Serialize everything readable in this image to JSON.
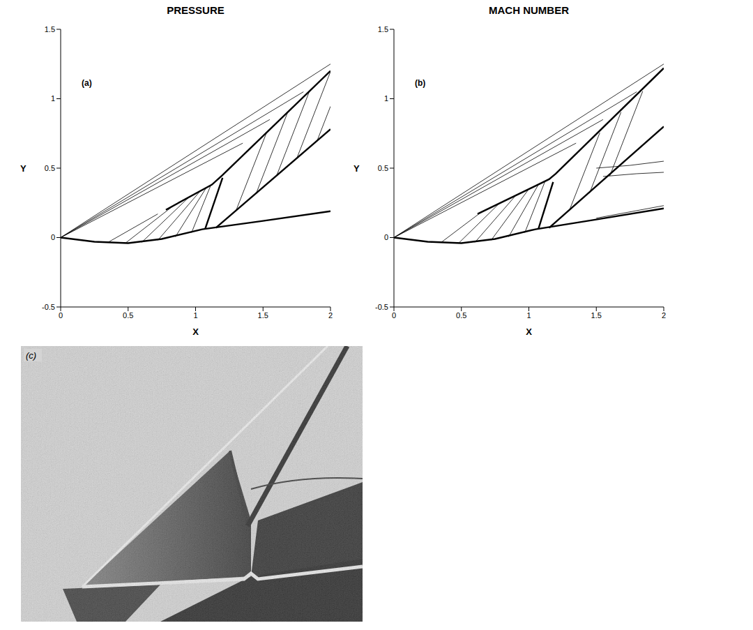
{
  "chart_data": [
    {
      "type": "line",
      "title": "PRESSURE",
      "panel_label": "(a)",
      "x_label": "X",
      "y_label": "Y",
      "xlim": [
        0,
        2
      ],
      "ylim": [
        -0.5,
        1.5
      ],
      "xticks": [
        0,
        0.5,
        1,
        1.5,
        2
      ],
      "yticks": [
        -0.5,
        0,
        0.5,
        1,
        1.5
      ],
      "series": [
        {
          "type": "line",
          "line_style": "thick",
          "color": "#000000",
          "x": [
            0,
            0.25,
            0.5,
            0.75,
            1.05,
            1.5,
            2
          ],
          "values": [
            0,
            -0.03,
            -0.04,
            -0.01,
            0.06,
            0.12,
            0.19
          ]
        },
        {
          "type": "line",
          "line_style": "thick",
          "color": "#000000",
          "x": [
            0.78,
            1.12,
            1.2,
            2
          ],
          "values": [
            0.2,
            0.38,
            0.45,
            1.2
          ]
        },
        {
          "type": "line",
          "line_style": "thick",
          "color": "#000000",
          "x": [
            1.07,
            1.2
          ],
          "values": [
            0.06,
            0.43
          ]
        },
        {
          "type": "line",
          "line_style": "thick",
          "color": "#000000",
          "x": [
            1.15,
            2
          ],
          "values": [
            0.07,
            0.78
          ]
        },
        {
          "type": "line",
          "line_style": "thin",
          "color": "#000000",
          "x": [
            0,
            2
          ],
          "values": [
            0,
            1.25
          ]
        },
        {
          "type": "line",
          "line_style": "thin",
          "color": "#000000",
          "x": [
            0,
            1.8
          ],
          "values": [
            0,
            1.05
          ]
        },
        {
          "type": "line",
          "line_style": "thin",
          "color": "#000000",
          "x": [
            0,
            1.55
          ],
          "values": [
            0,
            0.85
          ]
        },
        {
          "type": "line",
          "line_style": "thin",
          "color": "#000000",
          "x": [
            0,
            1.35
          ],
          "values": [
            0,
            0.68
          ]
        },
        {
          "type": "line",
          "line_style": "thin",
          "color": "#000000",
          "x": [
            0.35,
            0.72
          ],
          "values": [
            -0.035,
            0.17
          ]
        },
        {
          "type": "line",
          "line_style": "thin",
          "color": "#000000",
          "x": [
            0.48,
            0.85
          ],
          "values": [
            -0.04,
            0.24
          ]
        },
        {
          "type": "line",
          "line_style": "thin",
          "color": "#000000",
          "x": [
            0.6,
            0.95
          ],
          "values": [
            -0.035,
            0.29
          ]
        },
        {
          "type": "line",
          "line_style": "thin",
          "color": "#000000",
          "x": [
            0.72,
            1.03
          ],
          "values": [
            -0.02,
            0.33
          ]
        },
        {
          "type": "line",
          "line_style": "thin",
          "color": "#000000",
          "x": [
            0.85,
            1.08
          ],
          "values": [
            0.005,
            0.36
          ]
        },
        {
          "type": "line",
          "line_style": "thin",
          "color": "#000000",
          "x": [
            0.97,
            1.11
          ],
          "values": [
            0.035,
            0.37
          ]
        },
        {
          "type": "line",
          "line_style": "thin",
          "color": "#000000",
          "x": [
            1.3,
            1.526
          ],
          "values": [
            0.195,
            0.755
          ]
        },
        {
          "type": "line",
          "line_style": "thin",
          "color": "#000000",
          "x": [
            1.45,
            1.683
          ],
          "values": [
            0.32,
            0.903
          ]
        },
        {
          "type": "line",
          "line_style": "thin",
          "color": "#000000",
          "x": [
            1.6,
            1.844
          ],
          "values": [
            0.444,
            1.054
          ]
        },
        {
          "type": "line",
          "line_style": "thin",
          "color": "#000000",
          "x": [
            1.75,
            2
          ],
          "values": [
            0.57,
            1.195
          ]
        },
        {
          "type": "line",
          "line_style": "thin",
          "color": "#000000",
          "x": [
            1.9,
            2
          ],
          "values": [
            0.695,
            0.945
          ]
        }
      ]
    },
    {
      "type": "line",
      "title": "MACH NUMBER",
      "panel_label": "(b)",
      "x_label": "X",
      "y_label": "Y",
      "xlim": [
        0,
        2
      ],
      "ylim": [
        -0.5,
        1.5
      ],
      "xticks": [
        0,
        0.5,
        1,
        1.5,
        2
      ],
      "yticks": [
        -0.5,
        0,
        0.5,
        1,
        1.5
      ],
      "series": [
        {
          "type": "line",
          "line_style": "thick",
          "color": "#000000",
          "x": [
            0,
            0.25,
            0.5,
            0.75,
            1.05,
            1.5,
            2
          ],
          "values": [
            0,
            -0.03,
            -0.04,
            -0.01,
            0.06,
            0.13,
            0.21
          ]
        },
        {
          "type": "line",
          "line_style": "thick",
          "color": "#000000",
          "x": [
            0.62,
            1.15,
            1.2,
            2
          ],
          "values": [
            0.17,
            0.42,
            0.46,
            1.22
          ]
        },
        {
          "type": "line",
          "line_style": "thick",
          "color": "#000000",
          "x": [
            1.07,
            1.18
          ],
          "values": [
            0.06,
            0.4
          ]
        },
        {
          "type": "line",
          "line_style": "thick",
          "color": "#000000",
          "x": [
            1.15,
            2
          ],
          "values": [
            0.07,
            0.8
          ]
        },
        {
          "type": "line",
          "line_style": "thin",
          "color": "#000000",
          "x": [
            0,
            2
          ],
          "values": [
            0,
            1.25
          ]
        },
        {
          "type": "line",
          "line_style": "thin",
          "color": "#000000",
          "x": [
            0,
            1.8
          ],
          "values": [
            0,
            1.05
          ]
        },
        {
          "type": "line",
          "line_style": "thin",
          "color": "#000000",
          "x": [
            0,
            1.55
          ],
          "values": [
            0,
            0.85
          ]
        },
        {
          "type": "line",
          "line_style": "thin",
          "color": "#000000",
          "x": [
            0,
            1.35
          ],
          "values": [
            0,
            0.68
          ]
        },
        {
          "type": "line",
          "line_style": "thin",
          "color": "#000000",
          "x": [
            0.35,
            0.65
          ],
          "values": [
            -0.035,
            0.185
          ]
        },
        {
          "type": "line",
          "line_style": "thin",
          "color": "#000000",
          "x": [
            0.48,
            0.78
          ],
          "values": [
            -0.04,
            0.245
          ]
        },
        {
          "type": "line",
          "line_style": "thin",
          "color": "#000000",
          "x": [
            0.6,
            0.9
          ],
          "values": [
            -0.035,
            0.3
          ]
        },
        {
          "type": "line",
          "line_style": "thin",
          "color": "#000000",
          "x": [
            0.72,
            1.0
          ],
          "values": [
            -0.02,
            0.35
          ]
        },
        {
          "type": "line",
          "line_style": "thin",
          "color": "#000000",
          "x": [
            0.85,
            1.07
          ],
          "values": [
            0.005,
            0.38
          ]
        },
        {
          "type": "line",
          "line_style": "thin",
          "color": "#000000",
          "x": [
            0.97,
            1.12
          ],
          "values": [
            0.035,
            0.405
          ]
        },
        {
          "type": "line",
          "line_style": "thin",
          "color": "#000000",
          "x": [
            1.3,
            1.526
          ],
          "values": [
            0.195,
            0.755
          ]
        },
        {
          "type": "line",
          "line_style": "thin",
          "color": "#000000",
          "x": [
            1.45,
            1.683
          ],
          "values": [
            0.32,
            0.903
          ]
        },
        {
          "type": "line",
          "line_style": "thin",
          "color": "#000000",
          "x": [
            1.6,
            1.844
          ],
          "values": [
            0.444,
            1.054
          ]
        },
        {
          "type": "line",
          "line_style": "thin",
          "color": "#000000",
          "x": [
            1.5,
            1.75,
            2
          ],
          "values": [
            0.5,
            0.52,
            0.55
          ]
        },
        {
          "type": "line",
          "line_style": "thin",
          "color": "#000000",
          "x": [
            1.55,
            1.8,
            2
          ],
          "values": [
            0.44,
            0.46,
            0.47
          ]
        },
        {
          "type": "line",
          "line_style": "thin",
          "color": "#000000",
          "x": [
            1.5,
            2
          ],
          "values": [
            0.14,
            0.23
          ]
        }
      ]
    }
  ],
  "photo": {
    "panel_label": "(c)"
  }
}
